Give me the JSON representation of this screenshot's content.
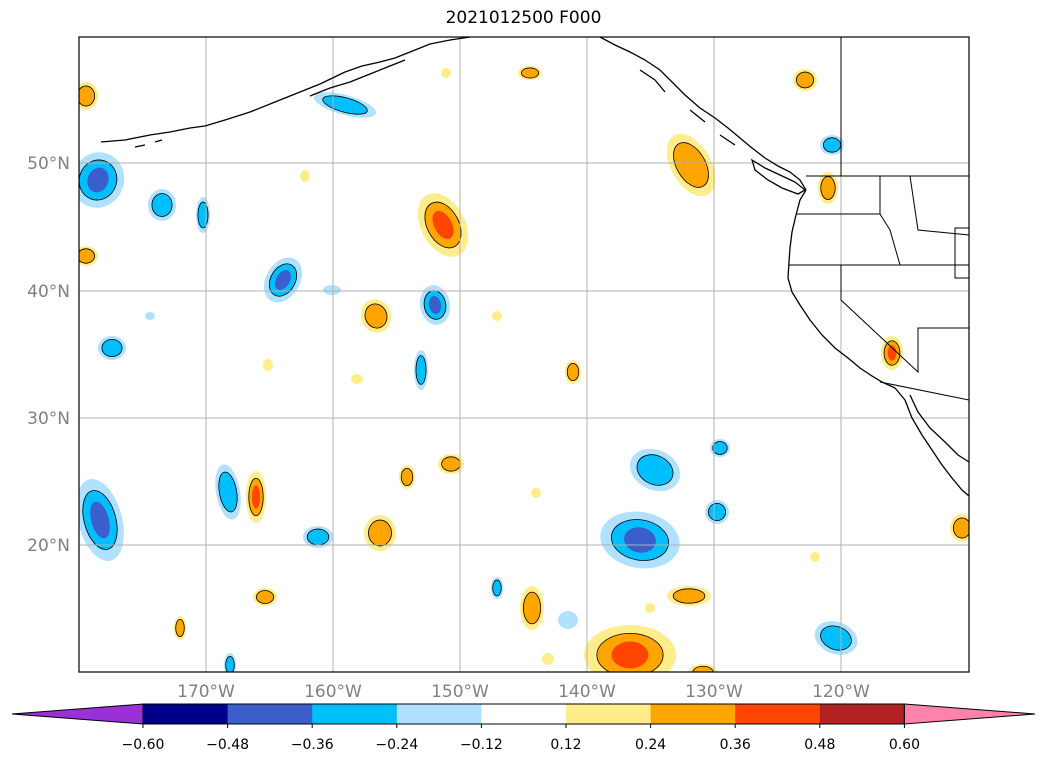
{
  "title": "2021012500 F000",
  "lat_labels": [
    "20°N",
    "30°N",
    "40°N",
    "50°N"
  ],
  "lon_labels": [
    "170°W",
    "160°W",
    "150°W",
    "140°W",
    "130°W",
    "120°W"
  ],
  "colorbar": {
    "colors": [
      "#9b30d9",
      "#00008b",
      "#3a5fcd",
      "#00bfff",
      "#b0e2ff",
      "#ffffff",
      "#ffec8b",
      "#ffa500",
      "#ff4500",
      "#b22222",
      "#ff82ab"
    ],
    "tick_labels": [
      "−0.60",
      "−0.48",
      "−0.36",
      "−0.24",
      "−0.12",
      "0.12",
      "0.24",
      "0.36",
      "0.48",
      "0.60"
    ]
  },
  "colors": {
    "neg_light": "#b0e2ff",
    "neg": "#00bfff",
    "neg_dark": "#3a5fcd",
    "pos_light": "#ffec8b",
    "pos": "#ffa500",
    "pos_dark": "#ff4500",
    "gridline": "#b0b0b0",
    "coast": "#000000"
  }
}
